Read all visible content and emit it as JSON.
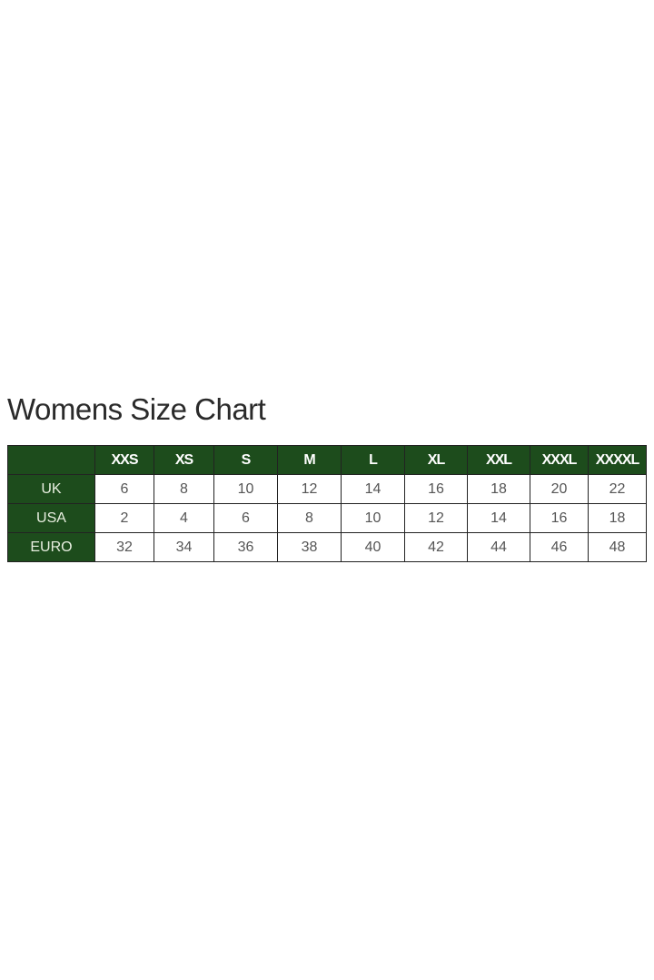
{
  "title": "Womens Size Chart",
  "colors": {
    "header_bg": "#1d4c1c"
  },
  "table": {
    "columns": [
      "",
      "XXS",
      "XS",
      "S",
      "M",
      "L",
      "XL",
      "XXL",
      "XXXL",
      "XXXXL"
    ],
    "rows": [
      {
        "label": "UK",
        "values": [
          "6",
          "8",
          "10",
          "12",
          "14",
          "16",
          "18",
          "20",
          "22"
        ]
      },
      {
        "label": "USA",
        "values": [
          "2",
          "4",
          "6",
          "8",
          "10",
          "12",
          "14",
          "16",
          "18"
        ]
      },
      {
        "label": "EURO",
        "values": [
          "32",
          "34",
          "36",
          "38",
          "40",
          "42",
          "44",
          "46",
          "48"
        ]
      }
    ]
  }
}
